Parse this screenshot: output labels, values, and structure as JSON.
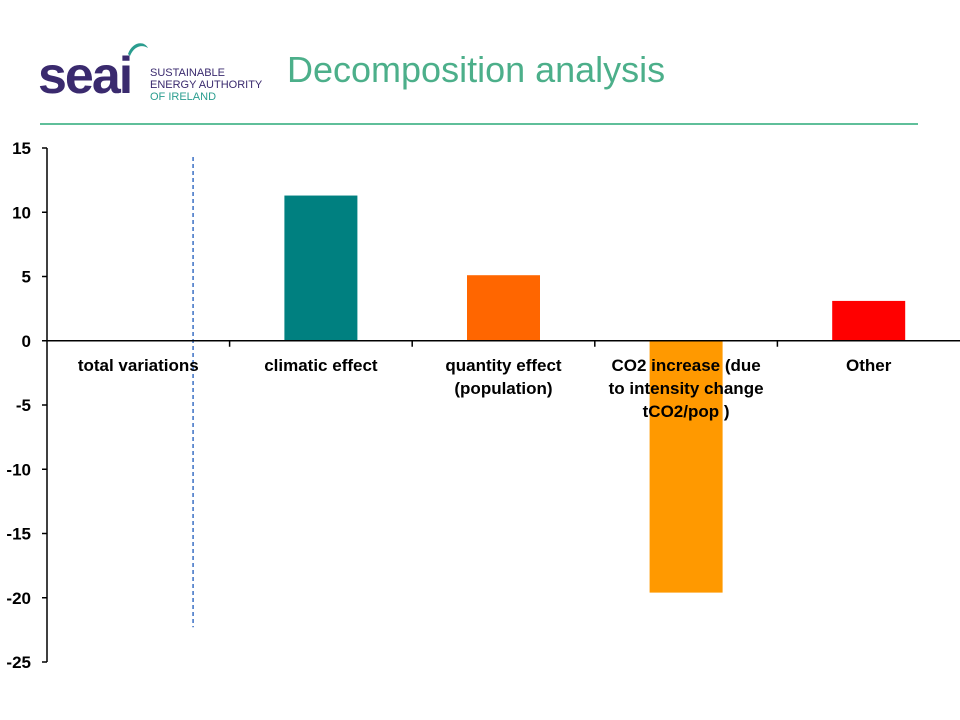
{
  "slide": {
    "title": "Decomposition analysis"
  },
  "logo": {
    "word": "seai",
    "lines": [
      "SUSTAINABLE",
      "ENERGY AUTHORITY",
      "OF IRELAND"
    ]
  },
  "colors": {
    "title": "#4caf8a",
    "rule": "#5fbf9a",
    "logo_purple": "#3a2a6e",
    "logo_teal": "#2a9d8f",
    "dashed_line": "#3a6fc4"
  },
  "chart_data": {
    "type": "bar",
    "categories": [
      [
        "total variations"
      ],
      [
        "climatic effect"
      ],
      [
        "quantity effect",
        "(population)"
      ],
      [
        "CO2 increase (due",
        "to intensity change",
        "tCO2/pop )"
      ],
      [
        "Other"
      ]
    ],
    "values": [
      null,
      11.3,
      5.1,
      -19.6,
      3.1
    ],
    "bar_colors": [
      "#ffffff",
      "#008080",
      "#ff6600",
      "#ff9900",
      "#ff0000"
    ],
    "ylim": [
      -25,
      15
    ],
    "yticks": [
      15,
      10,
      5,
      0,
      -5,
      -10,
      -15,
      -20,
      -25
    ],
    "dashed_line_y_range": [
      -22.3,
      14.3
    ],
    "title": "",
    "xlabel": "",
    "ylabel": "",
    "grid": false,
    "legend": "none"
  }
}
